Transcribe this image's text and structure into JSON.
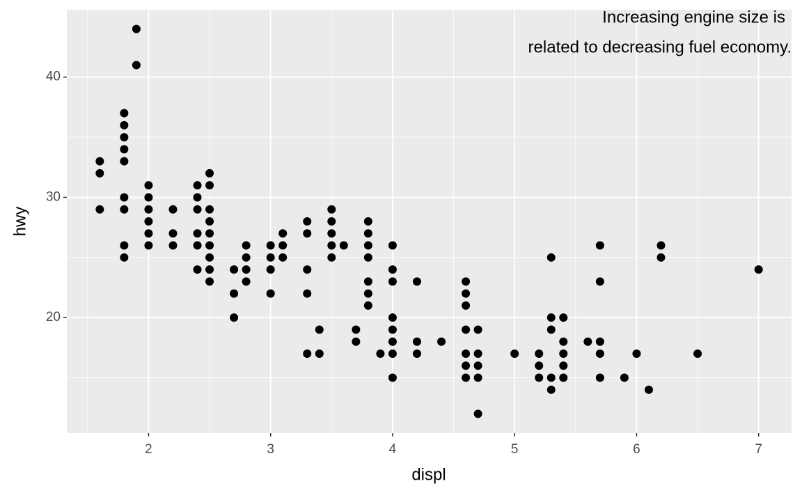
{
  "chart_data": {
    "type": "scatter",
    "annotation": [
      "Increasing engine size is",
      "related to decreasing fuel economy."
    ],
    "x_label": "displ",
    "y_label": "hwy",
    "color": "#000000",
    "grid": true,
    "xlim": [
      1.33,
      7.27
    ],
    "ylim": [
      10.4,
      45.6
    ],
    "xticks": [
      2,
      3,
      4,
      5,
      6,
      7
    ],
    "yticks": [
      20,
      30,
      40
    ],
    "xminor": [
      1.5,
      2.5,
      3.5,
      4.5,
      5.5,
      6.5
    ],
    "yminor": [
      15,
      25,
      35
    ],
    "x": [
      1.6,
      1.6,
      1.6,
      1.8,
      1.8,
      1.8,
      1.8,
      1.8,
      1.8,
      1.8,
      1.8,
      1.8,
      1.9,
      1.9,
      2,
      2,
      2,
      2,
      2,
      2,
      2.2,
      2.2,
      2.2,
      2.4,
      2.4,
      2.4,
      2.4,
      2.4,
      2.4,
      2.5,
      2.5,
      2.5,
      2.5,
      2.5,
      2.5,
      2.5,
      2.5,
      2.5,
      2.7,
      2.7,
      2.7,
      2.8,
      2.8,
      2.8,
      2.8,
      3,
      3,
      3,
      3,
      3.1,
      3.1,
      3.1,
      3.3,
      3.3,
      3.3,
      3.3,
      3.3,
      3.4,
      3.4,
      3.5,
      3.5,
      3.5,
      3.5,
      3.5,
      3.6,
      3.7,
      3.7,
      3.8,
      3.8,
      3.8,
      3.8,
      3.8,
      3.8,
      3.8,
      3.9,
      4,
      4,
      4,
      4,
      4,
      4,
      4,
      4,
      4.2,
      4.2,
      4.2,
      4.4,
      4.6,
      4.6,
      4.6,
      4.6,
      4.6,
      4.6,
      4.6,
      4.7,
      4.7,
      4.7,
      4.7,
      4.7,
      5,
      5.2,
      5.2,
      5.2,
      5.3,
      5.3,
      5.3,
      5.3,
      5.3,
      5.4,
      5.4,
      5.4,
      5.4,
      5.4,
      5.6,
      5.7,
      5.7,
      5.7,
      5.7,
      5.7,
      5.9,
      6,
      6.1,
      6.2,
      6.2,
      6.5,
      7
    ],
    "y": [
      33,
      32,
      29,
      37,
      36,
      35,
      34,
      33,
      30,
      29,
      26,
      25,
      44,
      41,
      31,
      30,
      29,
      28,
      27,
      26,
      29,
      27,
      26,
      31,
      30,
      29,
      27,
      26,
      24,
      32,
      31,
      29,
      28,
      27,
      26,
      25,
      24,
      23,
      24,
      22,
      20,
      26,
      25,
      24,
      23,
      26,
      25,
      24,
      22,
      27,
      26,
      25,
      28,
      27,
      24,
      22,
      17,
      19,
      17,
      29,
      28,
      27,
      26,
      25,
      26,
      19,
      18,
      28,
      27,
      26,
      25,
      23,
      22,
      21,
      17,
      26,
      24,
      23,
      20,
      19,
      18,
      17,
      15,
      23,
      18,
      17,
      18,
      23,
      22,
      21,
      19,
      17,
      16,
      15,
      19,
      17,
      16,
      15,
      12,
      17,
      17,
      16,
      15,
      25,
      20,
      19,
      15,
      14,
      20,
      18,
      17,
      16,
      15,
      18,
      26,
      23,
      18,
      17,
      15,
      15,
      17,
      14,
      26,
      25,
      17,
      24
    ]
  }
}
